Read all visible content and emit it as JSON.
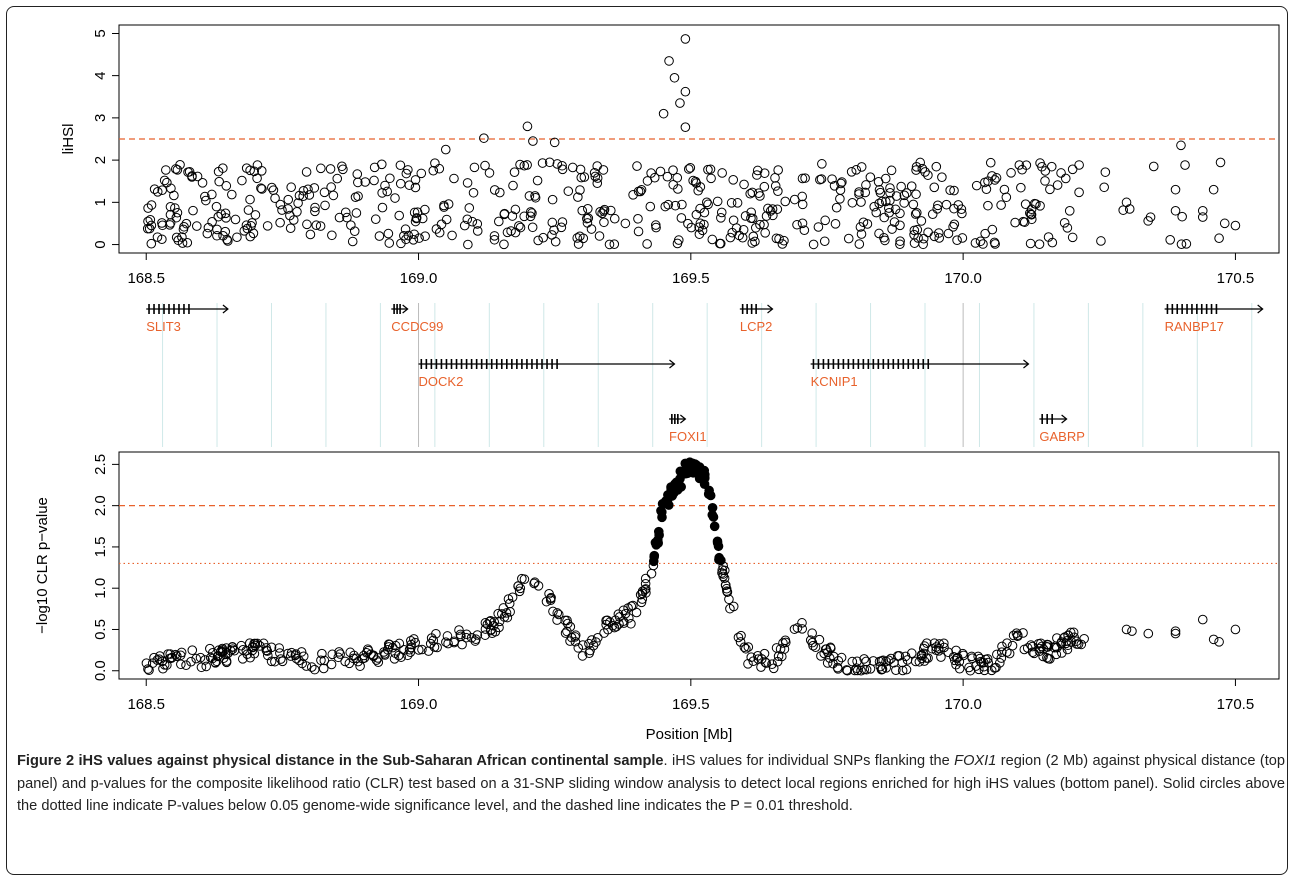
{
  "chart_data": [
    {
      "type": "scatter",
      "panel": "top",
      "ylabel": "liHSl",
      "xlim": [
        168.45,
        170.58
      ],
      "ylim": [
        -0.2,
        5.2
      ],
      "yticks": [
        0,
        1,
        2,
        3,
        4,
        5
      ],
      "xticks": [
        "168.5",
        "169.0",
        "169.5",
        "170.0",
        "170.5"
      ],
      "xtick_values": [
        168.5,
        169.0,
        169.5,
        170.0,
        170.5
      ],
      "threshold_dashed": 2.5,
      "threshold_color": "#e8622c",
      "point_style": "open circle",
      "highlighted_points": [
        {
          "x": 169.49,
          "y": 4.87
        },
        {
          "x": 169.46,
          "y": 4.35
        },
        {
          "x": 169.47,
          "y": 3.95
        },
        {
          "x": 169.49,
          "y": 3.62
        },
        {
          "x": 169.48,
          "y": 3.35
        },
        {
          "x": 169.45,
          "y": 3.1
        },
        {
          "x": 169.49,
          "y": 2.78
        },
        {
          "x": 169.2,
          "y": 2.8
        },
        {
          "x": 169.12,
          "y": 2.52
        },
        {
          "x": 169.25,
          "y": 2.42
        },
        {
          "x": 170.4,
          "y": 2.35
        },
        {
          "x": 169.21,
          "y": 2.45
        },
        {
          "x": 169.05,
          "y": 2.25
        }
      ]
    },
    {
      "type": "gene-track",
      "xlim": [
        168.45,
        170.58
      ],
      "genes": [
        {
          "name": "SLIT3",
          "start": 168.5,
          "end": 168.65,
          "row": 1,
          "label_color": "#e8622c"
        },
        {
          "name": "CCDC99",
          "start": 168.95,
          "end": 168.98,
          "row": 1,
          "label_color": "#e8622c"
        },
        {
          "name": "LCP2",
          "start": 169.59,
          "end": 169.65,
          "row": 1,
          "label_color": "#e8622c"
        },
        {
          "name": "RANBP17",
          "start": 170.37,
          "end": 170.55,
          "row": 1,
          "label_color": "#e8622c"
        },
        {
          "name": "DOCK2",
          "start": 169.0,
          "end": 169.47,
          "row": 2,
          "label_color": "#e8622c"
        },
        {
          "name": "KCNIP1",
          "start": 169.72,
          "end": 170.12,
          "row": 2,
          "label_color": "#e8622c"
        },
        {
          "name": "FOXI1",
          "start": 169.46,
          "end": 169.49,
          "row": 3,
          "label_color": "#e8622c"
        },
        {
          "name": "GABRP",
          "start": 170.14,
          "end": 170.19,
          "row": 3,
          "label_color": "#e8622c"
        }
      ]
    },
    {
      "type": "scatter",
      "panel": "bottom",
      "xlabel": "Position [Mb]",
      "ylabel": "−log10 CLR p−value",
      "xlim": [
        168.45,
        170.58
      ],
      "ylim": [
        -0.1,
        2.65
      ],
      "yticks": [
        "0.0",
        "0.5",
        "1.0",
        "1.5",
        "2.0",
        "2.5"
      ],
      "ytick_values": [
        0,
        0.5,
        1.0,
        1.5,
        2.0,
        2.5
      ],
      "xticks": [
        "168.5",
        "169.0",
        "169.5",
        "170.0",
        "170.5"
      ],
      "xtick_values": [
        168.5,
        169.0,
        169.5,
        170.0,
        170.5
      ],
      "threshold_dashed": 2.0,
      "threshold_dotted": 1.3,
      "threshold_color": "#e8622c",
      "curve_anchors": [
        {
          "x": 168.5,
          "y": 0.1
        },
        {
          "x": 168.6,
          "y": 0.15
        },
        {
          "x": 168.7,
          "y": 0.25
        },
        {
          "x": 168.8,
          "y": 0.1
        },
        {
          "x": 168.9,
          "y": 0.15
        },
        {
          "x": 169.0,
          "y": 0.3
        },
        {
          "x": 169.1,
          "y": 0.45
        },
        {
          "x": 169.15,
          "y": 0.6
        },
        {
          "x": 169.2,
          "y": 1.15
        },
        {
          "x": 169.25,
          "y": 0.75
        },
        {
          "x": 169.3,
          "y": 0.2
        },
        {
          "x": 169.35,
          "y": 0.55
        },
        {
          "x": 169.4,
          "y": 0.7
        },
        {
          "x": 169.43,
          "y": 1.3
        },
        {
          "x": 169.45,
          "y": 2.0
        },
        {
          "x": 169.5,
          "y": 2.52
        },
        {
          "x": 169.53,
          "y": 2.3
        },
        {
          "x": 169.55,
          "y": 1.5
        },
        {
          "x": 169.57,
          "y": 0.9
        },
        {
          "x": 169.6,
          "y": 0.2
        },
        {
          "x": 169.65,
          "y": 0.1
        },
        {
          "x": 169.7,
          "y": 0.55
        },
        {
          "x": 169.75,
          "y": 0.2
        },
        {
          "x": 169.8,
          "y": 0.02
        },
        {
          "x": 169.9,
          "y": 0.1
        },
        {
          "x": 169.95,
          "y": 0.3
        },
        {
          "x": 170.0,
          "y": 0.1
        },
        {
          "x": 170.05,
          "y": 0.05
        },
        {
          "x": 170.1,
          "y": 0.4
        },
        {
          "x": 170.15,
          "y": 0.2
        },
        {
          "x": 170.2,
          "y": 0.4
        },
        {
          "x": 170.3,
          "y": 0.5
        },
        {
          "x": 170.4,
          "y": 0.5
        },
        {
          "x": 170.5,
          "y": 0.5
        }
      ],
      "significant_points": "filled circles where value > 1.3"
    }
  ],
  "caption": {
    "title": "Figure 2 iHS values against physical distance in the Sub-Saharan African continental sample",
    "text_1": ". iHS values for individual SNPs flanking the ",
    "gene_italic": "FOXI1",
    "text_2": " region (2 Mb) against physical distance (top panel) and p-values for the composite likelihood ratio (CLR) test based on a 31-SNP sliding window analysis to detect local regions enriched for high iHS values (bottom panel). Solid circles above the dotted line indicate P-values below 0.05 genome-wide significance level, and the dashed line indicates the P = 0.01 threshold."
  }
}
